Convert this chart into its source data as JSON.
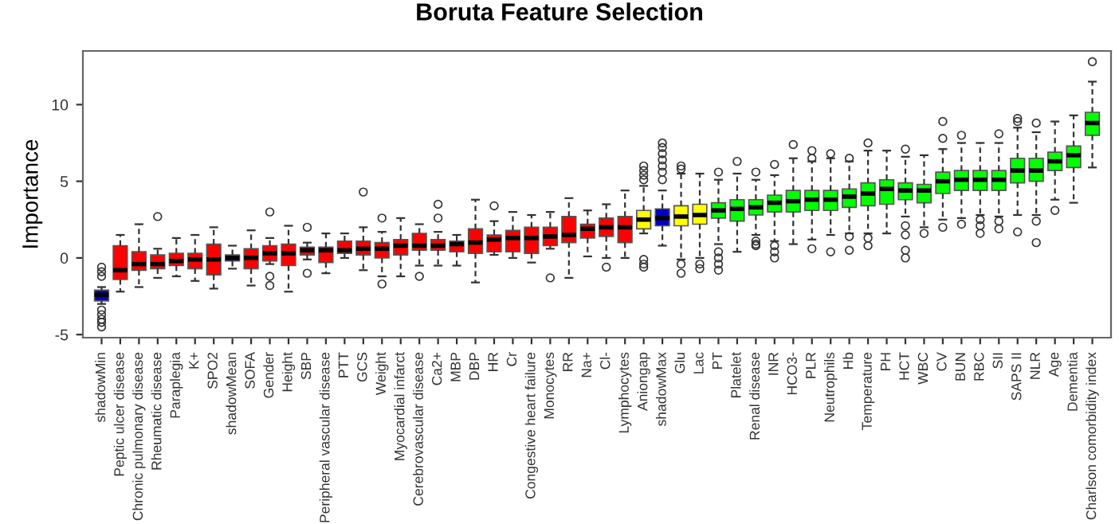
{
  "chart_data": {
    "type": "box",
    "title": "Boruta Feature Selection",
    "ylabel": "Importance",
    "categories": [
      "shadowMin",
      "Peptic ulcer disease",
      "Chronic pulmonary disease",
      "Rheumatic disease",
      "Paraplegia",
      "K+",
      "SPO2",
      "shadowMean",
      "SOFA",
      "Gender",
      "Height",
      "SBP",
      "Peripheral vascular disease",
      "PTT",
      "GCS",
      "Weight",
      "Myocardial infarct",
      "Cerebrovascular disease",
      "Ca2+",
      "MBP",
      "DBP",
      "HR",
      "Cr",
      "Congestive heart failure",
      "Monocytes",
      "RR",
      "Na+",
      "Cl-",
      "Lymphocytes",
      "Aniongap",
      "shadowMax",
      "Glu",
      "Lac",
      "PT",
      "Platelet",
      "Renal disease",
      "INR",
      "HCO3-",
      "PLR",
      "Neutrophils",
      "Hb",
      "Temperature",
      "PH",
      "HCT",
      "WBC",
      "CV",
      "BUN",
      "RBC",
      "SII",
      "SAPS II",
      "NLR",
      "Age",
      "Dementia",
      "Charlson comorbidity index"
    ],
    "colors": [
      "#0000cc",
      "#ff0000",
      "#ff0000",
      "#ff0000",
      "#ff0000",
      "#ff0000",
      "#ff0000",
      "#0000cc",
      "#ff0000",
      "#ff0000",
      "#ff0000",
      "#ff0000",
      "#ff0000",
      "#ff0000",
      "#ff0000",
      "#ff0000",
      "#ff0000",
      "#ff0000",
      "#ff0000",
      "#ff0000",
      "#ff0000",
      "#ff0000",
      "#ff0000",
      "#ff0000",
      "#ff0000",
      "#ff0000",
      "#ff0000",
      "#ff0000",
      "#ff0000",
      "#ffff00",
      "#0000cc",
      "#ffff00",
      "#ffff00",
      "#00ff00",
      "#00ff00",
      "#00ff00",
      "#00ff00",
      "#00ff00",
      "#00ff00",
      "#00ff00",
      "#00ff00",
      "#00ff00",
      "#00ff00",
      "#00ff00",
      "#00ff00",
      "#00ff00",
      "#00ff00",
      "#00ff00",
      "#00ff00",
      "#00ff00",
      "#00ff00",
      "#00ff00",
      "#00ff00",
      "#00ff00"
    ],
    "boxes": [
      {
        "low": -3.0,
        "q1": -2.8,
        "median": -2.4,
        "q3": -2.1,
        "high": -1.9,
        "outliers": [
          -0.6,
          -0.9,
          -1.2,
          -3.4,
          -3.7,
          -4.0,
          -4.2,
          -4.5
        ]
      },
      {
        "low": -2.2,
        "q1": -1.4,
        "median": -0.8,
        "q3": 0.8,
        "high": 1.5
      },
      {
        "low": -1.9,
        "q1": -0.8,
        "median": -0.4,
        "q3": 0.4,
        "high": 2.2
      },
      {
        "low": -1.3,
        "q1": -0.7,
        "median": -0.4,
        "q3": 0.2,
        "high": 0.6,
        "outliers": [
          2.7
        ]
      },
      {
        "low": -1.2,
        "q1": -0.5,
        "median": -0.2,
        "q3": 0.3,
        "high": 1.3
      },
      {
        "low": -1.5,
        "q1": -0.7,
        "median": -0.1,
        "q3": 0.3,
        "high": 1.5
      },
      {
        "low": -2.0,
        "q1": -1.1,
        "median": -0.1,
        "q3": 0.9,
        "high": 2.0
      },
      {
        "low": -0.7,
        "q1": -0.2,
        "median": 0.0,
        "q3": 0.2,
        "high": 0.8
      },
      {
        "low": -1.8,
        "q1": -0.7,
        "median": 0.0,
        "q3": 0.6,
        "high": 1.8
      },
      {
        "low": -0.4,
        "q1": -0.2,
        "median": 0.3,
        "q3": 0.8,
        "high": 1.3,
        "outliers": [
          3.0,
          -1.2,
          -1.8
        ]
      },
      {
        "low": -2.2,
        "q1": -0.5,
        "median": 0.3,
        "q3": 0.9,
        "high": 2.1
      },
      {
        "low": -0.1,
        "q1": 0.2,
        "median": 0.5,
        "q3": 0.7,
        "high": 1.0,
        "outliers": [
          2.0,
          -1.0
        ]
      },
      {
        "low": -1.0,
        "q1": -0.3,
        "median": 0.5,
        "q3": 0.7,
        "high": 1.6
      },
      {
        "low": 0.0,
        "q1": 0.3,
        "median": 0.5,
        "q3": 1.1,
        "high": 1.6
      },
      {
        "low": -0.8,
        "q1": 0.2,
        "median": 0.6,
        "q3": 1.1,
        "high": 2.0,
        "outliers": [
          4.3
        ]
      },
      {
        "low": -1.2,
        "q1": 0.0,
        "median": 0.6,
        "q3": 1.0,
        "high": 1.7,
        "outliers": [
          2.6,
          -1.7
        ]
      },
      {
        "low": -1.2,
        "q1": 0.2,
        "median": 0.8,
        "q3": 1.2,
        "high": 2.6
      },
      {
        "low": -0.5,
        "q1": 0.5,
        "median": 0.8,
        "q3": 1.6,
        "high": 2.2,
        "outliers": [
          -1.2
        ]
      },
      {
        "low": -0.5,
        "q1": 0.5,
        "median": 0.8,
        "q3": 1.2,
        "high": 1.7,
        "outliers": [
          3.5,
          2.6
        ]
      },
      {
        "low": -0.5,
        "q1": 0.4,
        "median": 0.9,
        "q3": 1.1,
        "high": 1.5
      },
      {
        "low": -1.6,
        "q1": 0.3,
        "median": 1.0,
        "q3": 1.9,
        "high": 3.8
      },
      {
        "low": 0.2,
        "q1": 0.4,
        "median": 1.2,
        "q3": 1.5,
        "high": 2.4,
        "outliers": [
          3.4
        ]
      },
      {
        "low": 0.0,
        "q1": 0.4,
        "median": 1.3,
        "q3": 1.8,
        "high": 3.0
      },
      {
        "low": -0.3,
        "q1": 0.3,
        "median": 1.3,
        "q3": 2.0,
        "high": 2.8
      },
      {
        "low": 0.6,
        "q1": 0.8,
        "median": 1.4,
        "q3": 2.0,
        "high": 3.0,
        "outliers": [
          -1.3
        ]
      },
      {
        "low": -1.3,
        "q1": 1.0,
        "median": 1.5,
        "q3": 2.7,
        "high": 3.9
      },
      {
        "low": 0.1,
        "q1": 1.3,
        "median": 1.9,
        "q3": 2.2,
        "high": 3.1
      },
      {
        "low": 0.0,
        "q1": 1.4,
        "median": 2.0,
        "q3": 2.6,
        "high": 3.5,
        "outliers": [
          -0.6
        ]
      },
      {
        "low": 0.0,
        "q1": 1.0,
        "median": 2.0,
        "q3": 2.7,
        "high": 4.4
      },
      {
        "low": 1.6,
        "q1": 1.9,
        "median": 2.5,
        "q3": 3.1,
        "high": 4.7,
        "outliers": [
          5.1,
          5.4,
          5.7,
          6.0,
          -0.1,
          -0.4,
          -0.6
        ]
      },
      {
        "low": 0.8,
        "q1": 2.1,
        "median": 2.6,
        "q3": 3.2,
        "high": 4.4,
        "outliers": [
          5.1,
          5.6,
          6.0,
          6.4,
          6.8,
          7.2,
          7.5
        ]
      },
      {
        "low": -0.1,
        "q1": 2.1,
        "median": 2.7,
        "q3": 3.4,
        "high": 5.5,
        "outliers": [
          5.8,
          6.0,
          -0.4,
          -1.0
        ]
      },
      {
        "low": 0.0,
        "q1": 2.2,
        "median": 2.8,
        "q3": 3.5,
        "high": 5.5,
        "outliers": [
          -0.4,
          -0.7
        ]
      },
      {
        "low": 0.9,
        "q1": 2.6,
        "median": 3.1,
        "q3": 3.6,
        "high": 5.1,
        "outliers": [
          5.6,
          0.4,
          0.0,
          -0.4,
          -0.8
        ]
      },
      {
        "low": 0.4,
        "q1": 2.4,
        "median": 3.2,
        "q3": 3.8,
        "high": 5.5,
        "outliers": [
          6.3
        ]
      },
      {
        "low": 1.5,
        "q1": 2.8,
        "median": 3.3,
        "q3": 3.8,
        "high": 5.1,
        "outliers": [
          5.6,
          1.1,
          0.9,
          0.8
        ]
      },
      {
        "low": 1.1,
        "q1": 3.0,
        "median": 3.6,
        "q3": 4.1,
        "high": 5.4,
        "outliers": [
          6.1,
          0.8,
          0.4,
          0.0
        ]
      },
      {
        "low": 0.9,
        "q1": 3.0,
        "median": 3.7,
        "q3": 4.4,
        "high": 6.5,
        "outliers": [
          7.4
        ]
      },
      {
        "low": 1.2,
        "q1": 3.1,
        "median": 3.8,
        "q3": 4.4,
        "high": 6.3,
        "outliers": [
          6.5,
          7.0,
          0.6
        ]
      },
      {
        "low": 1.5,
        "q1": 3.1,
        "median": 3.8,
        "q3": 4.4,
        "high": 6.5,
        "outliers": [
          6.8,
          0.4
        ]
      },
      {
        "low": 1.6,
        "q1": 3.3,
        "median": 4.0,
        "q3": 4.5,
        "high": 6.3,
        "outliers": [
          6.5,
          1.4,
          0.5
        ]
      },
      {
        "low": 1.6,
        "q1": 3.4,
        "median": 4.2,
        "q3": 4.9,
        "high": 7.0,
        "outliers": [
          7.5,
          1.3,
          0.8
        ]
      },
      {
        "low": 1.6,
        "q1": 3.5,
        "median": 4.5,
        "q3": 5.1,
        "high": 7.0
      },
      {
        "low": 2.7,
        "q1": 3.8,
        "median": 4.4,
        "q3": 4.9,
        "high": 6.6,
        "outliers": [
          7.1,
          2.1,
          1.5,
          0.5,
          0.0
        ]
      },
      {
        "low": 2.0,
        "q1": 3.6,
        "median": 4.4,
        "q3": 4.8,
        "high": 6.7,
        "outliers": [
          1.6
        ]
      },
      {
        "low": 2.5,
        "q1": 4.2,
        "median": 5.0,
        "q3": 5.6,
        "high": 7.1,
        "outliers": [
          8.9,
          7.8,
          2.0
        ]
      },
      {
        "low": 2.6,
        "q1": 4.4,
        "median": 5.1,
        "q3": 5.7,
        "high": 7.5,
        "outliers": [
          8.0,
          2.2
        ]
      },
      {
        "low": 2.8,
        "q1": 4.4,
        "median": 5.1,
        "q3": 5.7,
        "high": 7.5,
        "outliers": [
          2.5,
          2.1,
          1.6
        ]
      },
      {
        "low": 2.7,
        "q1": 4.4,
        "median": 5.1,
        "q3": 5.7,
        "high": 7.5,
        "outliers": [
          8.1,
          2.4,
          1.9
        ]
      },
      {
        "low": 2.8,
        "q1": 4.9,
        "median": 5.7,
        "q3": 6.5,
        "high": 8.5,
        "outliers": [
          8.9,
          9.1,
          1.7
        ]
      },
      {
        "low": 2.8,
        "q1": 5.0,
        "median": 5.7,
        "q3": 6.5,
        "high": 8.2,
        "outliers": [
          8.8,
          2.4,
          1.0
        ]
      },
      {
        "low": 3.8,
        "q1": 5.7,
        "median": 6.3,
        "q3": 6.9,
        "high": 8.9,
        "outliers": [
          3.1
        ]
      },
      {
        "low": 3.6,
        "q1": 5.9,
        "median": 6.7,
        "q3": 7.3,
        "high": 9.3
      },
      {
        "low": 5.9,
        "q1": 8.0,
        "median": 8.8,
        "q3": 9.5,
        "high": 11.5,
        "outliers": [
          12.8
        ]
      }
    ],
    "ylim": [
      -5.2,
      13.5
    ],
    "yticks": [
      -5,
      0,
      5,
      10
    ]
  }
}
